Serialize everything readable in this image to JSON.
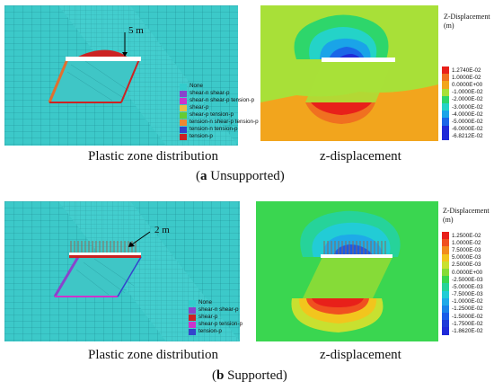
{
  "panel_a": {
    "label_letter": "a",
    "label_text": " Unsupported",
    "plastic_caption": "Plastic zone distribution",
    "disp_caption": "z-displacement",
    "annotation": "5 m",
    "legend": [
      {
        "label": "None",
        "color": "#33cccc"
      },
      {
        "label": "shear-n shear-p",
        "color": "#8844cc"
      },
      {
        "label": "shear-n shear-p tension-p",
        "color": "#cc33cc"
      },
      {
        "label": "shear-p",
        "color": "#e8c040"
      },
      {
        "label": "shear-p tension-p",
        "color": "#66cc33"
      },
      {
        "label": "tension-n shear-p tension-p",
        "color": "#ee8833"
      },
      {
        "label": "tension-n tension-p",
        "color": "#3344cc"
      },
      {
        "label": "tension-p",
        "color": "#cc2222"
      }
    ],
    "colorbar_title": [
      "Z-Displacement",
      "(m)"
    ],
    "colorbar": [
      {
        "label": "1.2740E-02",
        "color": "#e8201a"
      },
      {
        "label": "1.0000E-02",
        "color": "#f07020"
      },
      {
        "label": "0.0000E+00",
        "color": "#f2a51d"
      },
      {
        "label": "-1.0000E-02",
        "color": "#a8e038"
      },
      {
        "label": "-2.0000E-02",
        "color": "#2ed66b"
      },
      {
        "label": "-3.0000E-02",
        "color": "#24d3c8"
      },
      {
        "label": "-4.0000E-02",
        "color": "#1aa4e8"
      },
      {
        "label": "-5.0000E-02",
        "color": "#1a66e8"
      },
      {
        "label": "-6.0000E-02",
        "color": "#1f2ad8"
      },
      {
        "label": "-6.8212E-02",
        "color": "#1f2ad8"
      }
    ]
  },
  "panel_b": {
    "label_letter": "b",
    "label_text": " Supported",
    "plastic_caption": "Plastic zone distribution",
    "disp_caption": "z-displacement",
    "annotation": "2 m",
    "legend": [
      {
        "label": "None",
        "color": "#33cccc"
      },
      {
        "label": "shear-n shear-p",
        "color": "#8844cc"
      },
      {
        "label": "shear-p",
        "color": "#cc2222"
      },
      {
        "label": "shear-p tension-p",
        "color": "#cc33cc"
      },
      {
        "label": "tension-p",
        "color": "#3344cc"
      }
    ],
    "colorbar_title": [
      "Z-Displacement",
      "(m)"
    ],
    "colorbar": [
      {
        "label": "1.2500E-02",
        "color": "#e8201a"
      },
      {
        "label": "1.0000E-02",
        "color": "#f05020"
      },
      {
        "label": "7.5000E-03",
        "color": "#f28c1d"
      },
      {
        "label": "5.0000E-03",
        "color": "#f2c51d"
      },
      {
        "label": "2.5000E-03",
        "color": "#c8e030"
      },
      {
        "label": "0.0000E+00",
        "color": "#86db38"
      },
      {
        "label": "-2.5000E-03",
        "color": "#3ad650"
      },
      {
        "label": "-5.0000E-03",
        "color": "#26d39a"
      },
      {
        "label": "-7.5000E-03",
        "color": "#22ccd6"
      },
      {
        "label": "-1.0000E-02",
        "color": "#1eaae8"
      },
      {
        "label": "-1.2500E-02",
        "color": "#1a84e8"
      },
      {
        "label": "-1.5000E-02",
        "color": "#1a5ce8"
      },
      {
        "label": "-1.7500E-02",
        "color": "#1f3ad8"
      },
      {
        "label": "-1.8620E-02",
        "color": "#1f2ad8"
      }
    ]
  }
}
